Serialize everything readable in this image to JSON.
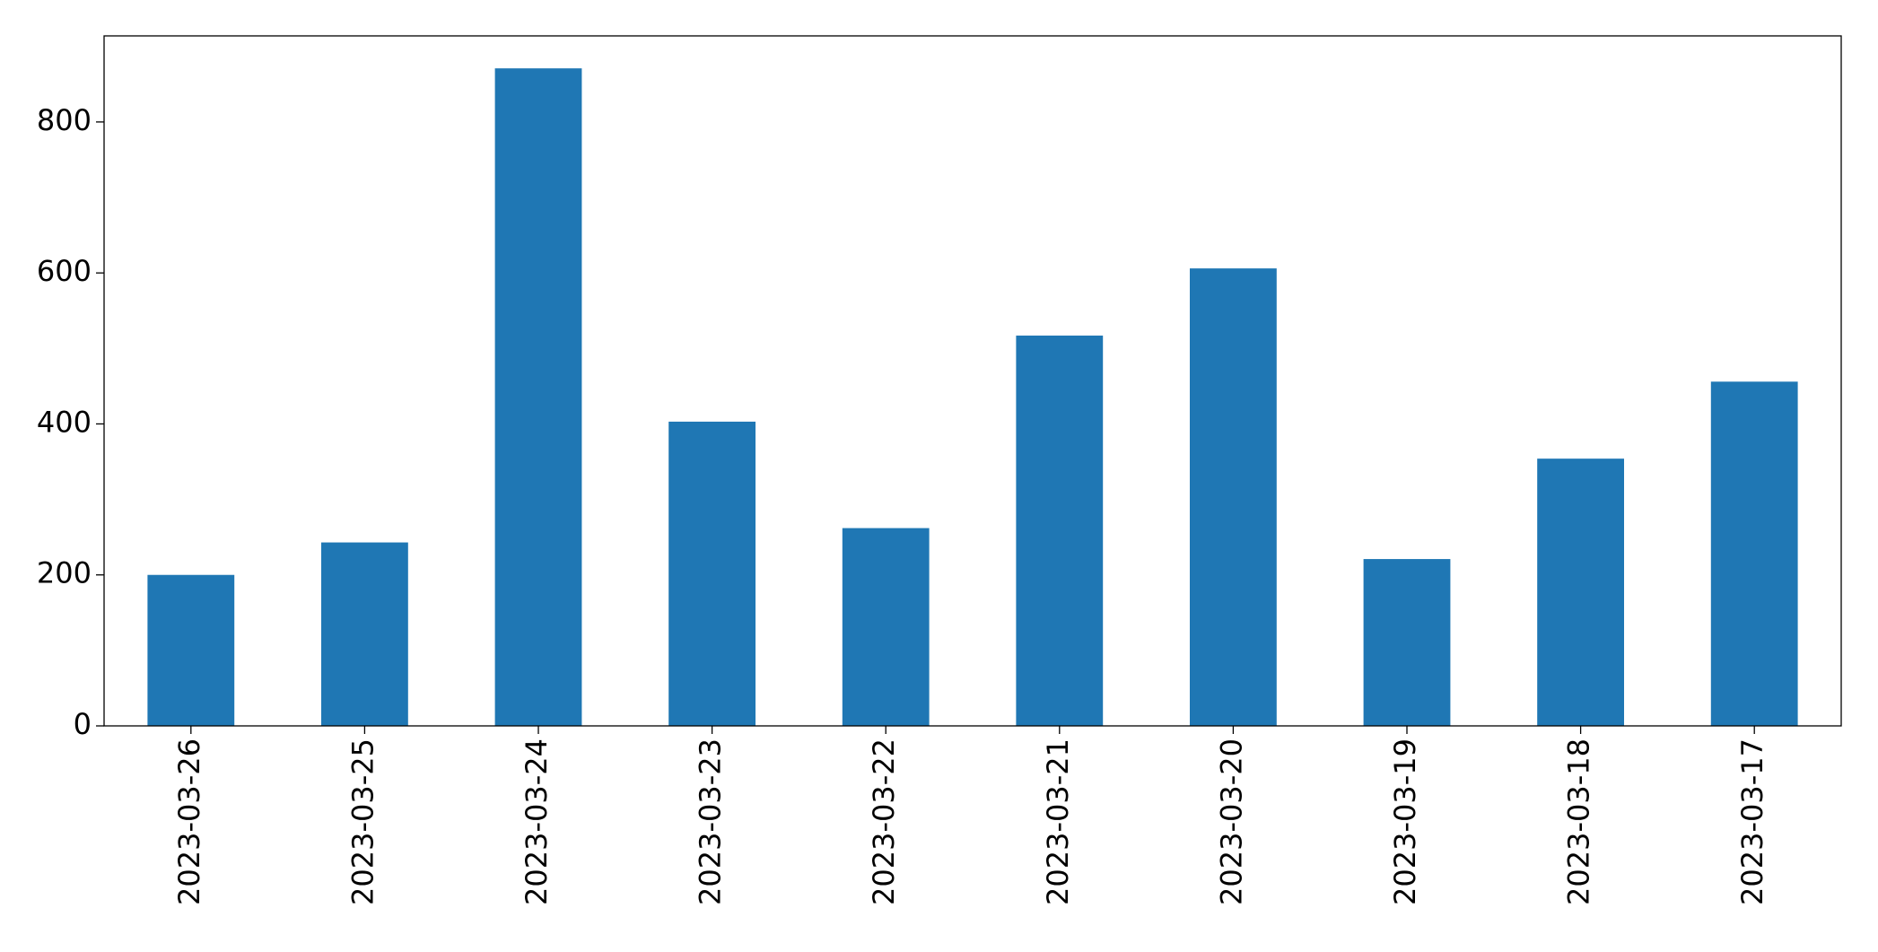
{
  "chart_data": {
    "type": "bar",
    "categories": [
      "2023-03-26",
      "2023-03-25",
      "2023-03-24",
      "2023-03-23",
      "2023-03-22",
      "2023-03-21",
      "2023-03-20",
      "2023-03-19",
      "2023-03-18",
      "2023-03-17"
    ],
    "values": [
      200,
      243,
      871,
      403,
      262,
      517,
      606,
      221,
      354,
      456
    ],
    "color": "#1f77b4",
    "ylim": [
      0,
      914
    ],
    "yticks": [
      0,
      200,
      400,
      600,
      800
    ],
    "grid": false
  }
}
